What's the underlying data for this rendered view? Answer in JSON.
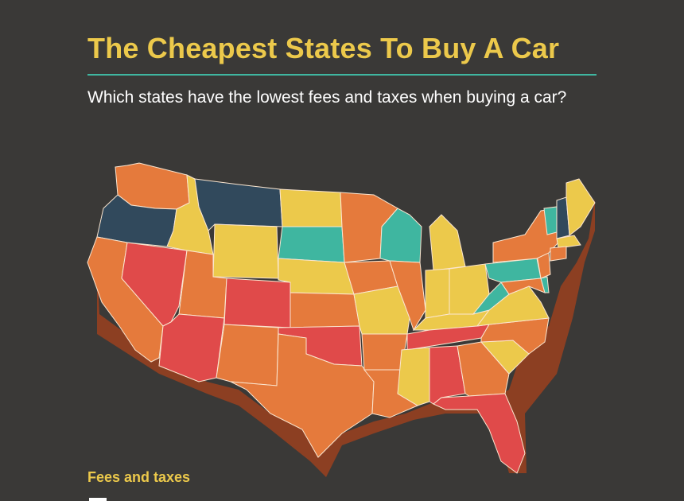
{
  "header": {
    "title": "The Cheapest States To Buy A Car",
    "subtitle": "Which states have the lowest fees and taxes when buying a car?"
  },
  "legend": {
    "title": "Fees and taxes"
  },
  "colors": {
    "background": "#3a3937",
    "title": "#ecc94b",
    "rule": "#3fb6a0",
    "highest": "#e04a4a",
    "high": "#e57a3c",
    "medium": "#ecc94b",
    "low": "#3fb6a0",
    "lowest": "#31495c"
  },
  "map": {
    "region": "contiguous United States",
    "style": "3D extruded choropleth"
  }
}
